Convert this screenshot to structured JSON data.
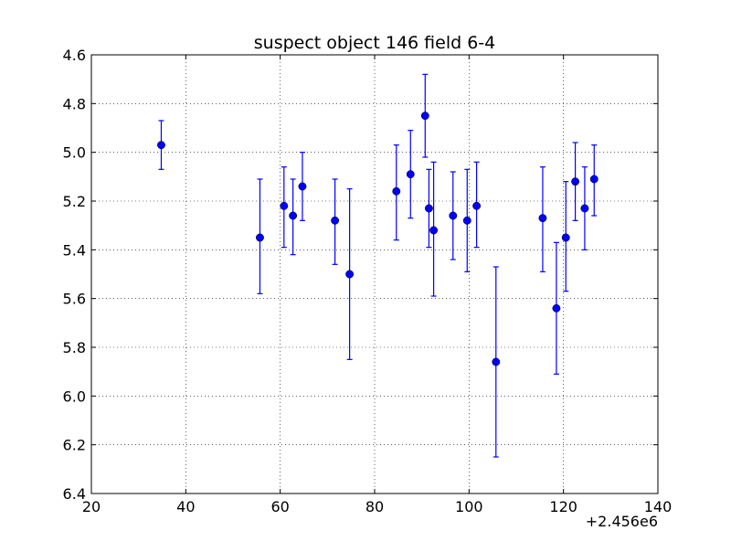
{
  "chart_data": {
    "type": "scatter",
    "title": "suspect object 146 field 6-4",
    "xlabel": "",
    "ylabel": "",
    "x_offset_label": "+2.456e6",
    "xlim": [
      20,
      140
    ],
    "ylim": [
      6.4,
      4.6
    ],
    "y_inverted": true,
    "x_ticks": [
      20,
      40,
      60,
      80,
      100,
      120,
      140
    ],
    "x_tick_labels": [
      "20",
      "40",
      "60",
      "80",
      "100",
      "120",
      "140"
    ],
    "y_ticks": [
      4.6,
      4.8,
      5.0,
      5.2,
      5.4,
      5.6,
      5.8,
      6.0,
      6.2,
      6.4
    ],
    "y_tick_labels": [
      "4.6",
      "4.8",
      "5.0",
      "5.2",
      "5.4",
      "5.6",
      "5.8",
      "6.0",
      "6.2",
      "6.4"
    ],
    "grid": true,
    "color": "#0000ff",
    "points": [
      {
        "x": 34.8,
        "y": 4.97,
        "lo": 4.87,
        "hi": 5.07
      },
      {
        "x": 55.7,
        "y": 5.35,
        "lo": 5.11,
        "hi": 5.58
      },
      {
        "x": 60.8,
        "y": 5.22,
        "lo": 5.06,
        "hi": 5.39
      },
      {
        "x": 62.7,
        "y": 5.26,
        "lo": 5.11,
        "hi": 5.42
      },
      {
        "x": 64.7,
        "y": 5.14,
        "lo": 5.0,
        "hi": 5.28
      },
      {
        "x": 71.6,
        "y": 5.28,
        "lo": 5.11,
        "hi": 5.46
      },
      {
        "x": 74.7,
        "y": 5.5,
        "lo": 5.15,
        "hi": 5.85
      },
      {
        "x": 84.6,
        "y": 5.16,
        "lo": 4.97,
        "hi": 5.36
      },
      {
        "x": 87.6,
        "y": 5.09,
        "lo": 4.91,
        "hi": 5.27
      },
      {
        "x": 90.7,
        "y": 4.85,
        "lo": 4.68,
        "hi": 5.02
      },
      {
        "x": 91.5,
        "y": 5.23,
        "lo": 5.07,
        "hi": 5.39
      },
      {
        "x": 92.5,
        "y": 5.32,
        "lo": 5.04,
        "hi": 5.59
      },
      {
        "x": 96.6,
        "y": 5.26,
        "lo": 5.08,
        "hi": 5.44
      },
      {
        "x": 99.6,
        "y": 5.28,
        "lo": 5.07,
        "hi": 5.49
      },
      {
        "x": 101.6,
        "y": 5.22,
        "lo": 5.04,
        "hi": 5.39
      },
      {
        "x": 105.7,
        "y": 5.86,
        "lo": 5.47,
        "hi": 6.25
      },
      {
        "x": 115.6,
        "y": 5.27,
        "lo": 5.06,
        "hi": 5.49
      },
      {
        "x": 118.5,
        "y": 5.64,
        "lo": 5.37,
        "hi": 5.91
      },
      {
        "x": 120.5,
        "y": 5.35,
        "lo": 5.12,
        "hi": 5.57
      },
      {
        "x": 122.5,
        "y": 5.12,
        "lo": 4.96,
        "hi": 5.28
      },
      {
        "x": 124.5,
        "y": 5.23,
        "lo": 5.06,
        "hi": 5.4
      },
      {
        "x": 126.5,
        "y": 5.11,
        "lo": 4.97,
        "hi": 5.26
      }
    ]
  }
}
